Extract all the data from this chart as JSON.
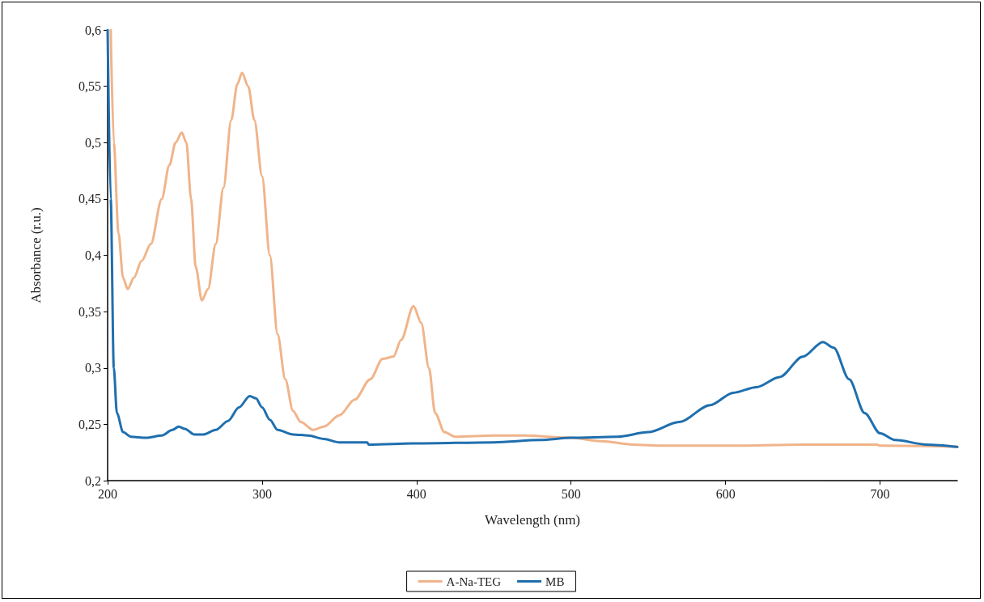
{
  "chart_data": {
    "type": "line",
    "xlabel": "Wavelength (nm)",
    "ylabel": "Absorbance (r.u.)",
    "xlim": [
      200,
      750
    ],
    "xticks": [
      200,
      300,
      400,
      500,
      600,
      700
    ],
    "ylim": [
      0.2,
      0.6
    ],
    "yticks": [
      {
        "value": 0.2,
        "label": "0,2"
      },
      {
        "value": 0.25,
        "label": "0,25"
      },
      {
        "value": 0.3,
        "label": "0,3"
      },
      {
        "value": 0.35,
        "label": "0,35"
      },
      {
        "value": 0.4,
        "label": "0,4"
      },
      {
        "value": 0.45,
        "label": "0,45"
      },
      {
        "value": 0.5,
        "label": "0,5"
      },
      {
        "value": 0.55,
        "label": "0,55"
      },
      {
        "value": 0.6,
        "label": "0,6"
      }
    ],
    "grid": false,
    "legend": "bottom",
    "marker": "none",
    "line_style": "solid",
    "series": [
      {
        "name": "A-Na-TEG",
        "color": "#f0b48a",
        "x": [
          202,
          204,
          207,
          210,
          213,
          217,
          222,
          228,
          235,
          240,
          244,
          248,
          251,
          254,
          257,
          261,
          265,
          270,
          275,
          280,
          284,
          287,
          291,
          295,
          300,
          305,
          310,
          315,
          320,
          325,
          333,
          340,
          350,
          360,
          370,
          378,
          385,
          390,
          398,
          403,
          408,
          412,
          418,
          425,
          450,
          470,
          500,
          520,
          540,
          560,
          600,
          650,
          698,
          700,
          750
        ],
        "values": [
          0.6,
          0.5,
          0.42,
          0.38,
          0.37,
          0.38,
          0.395,
          0.41,
          0.45,
          0.48,
          0.5,
          0.509,
          0.5,
          0.45,
          0.39,
          0.36,
          0.37,
          0.41,
          0.46,
          0.52,
          0.552,
          0.562,
          0.55,
          0.52,
          0.47,
          0.4,
          0.33,
          0.29,
          0.262,
          0.252,
          0.245,
          0.248,
          0.258,
          0.272,
          0.29,
          0.308,
          0.31,
          0.325,
          0.355,
          0.34,
          0.3,
          0.26,
          0.243,
          0.239,
          0.24,
          0.24,
          0.238,
          0.235,
          0.232,
          0.231,
          0.231,
          0.232,
          0.232,
          0.231,
          0.23
        ]
      },
      {
        "name": "MB",
        "color": "#1f6fae",
        "x": [
          200,
          202,
          204,
          206,
          210,
          215,
          225,
          235,
          242,
          246,
          250,
          256,
          262,
          270,
          278,
          285,
          292,
          296,
          300,
          305,
          310,
          320,
          330,
          340,
          350,
          360,
          368,
          369,
          400,
          450,
          480,
          500,
          530,
          550,
          570,
          590,
          605,
          620,
          635,
          650,
          663,
          670,
          680,
          690,
          700,
          710,
          730,
          750
        ],
        "values": [
          0.6,
          0.45,
          0.3,
          0.26,
          0.243,
          0.239,
          0.238,
          0.24,
          0.245,
          0.248,
          0.246,
          0.241,
          0.241,
          0.245,
          0.253,
          0.265,
          0.275,
          0.273,
          0.265,
          0.254,
          0.245,
          0.241,
          0.24,
          0.237,
          0.234,
          0.234,
          0.234,
          0.232,
          0.233,
          0.234,
          0.236,
          0.238,
          0.239,
          0.243,
          0.252,
          0.267,
          0.278,
          0.283,
          0.292,
          0.31,
          0.323,
          0.318,
          0.29,
          0.26,
          0.242,
          0.236,
          0.232,
          0.23
        ]
      }
    ]
  }
}
